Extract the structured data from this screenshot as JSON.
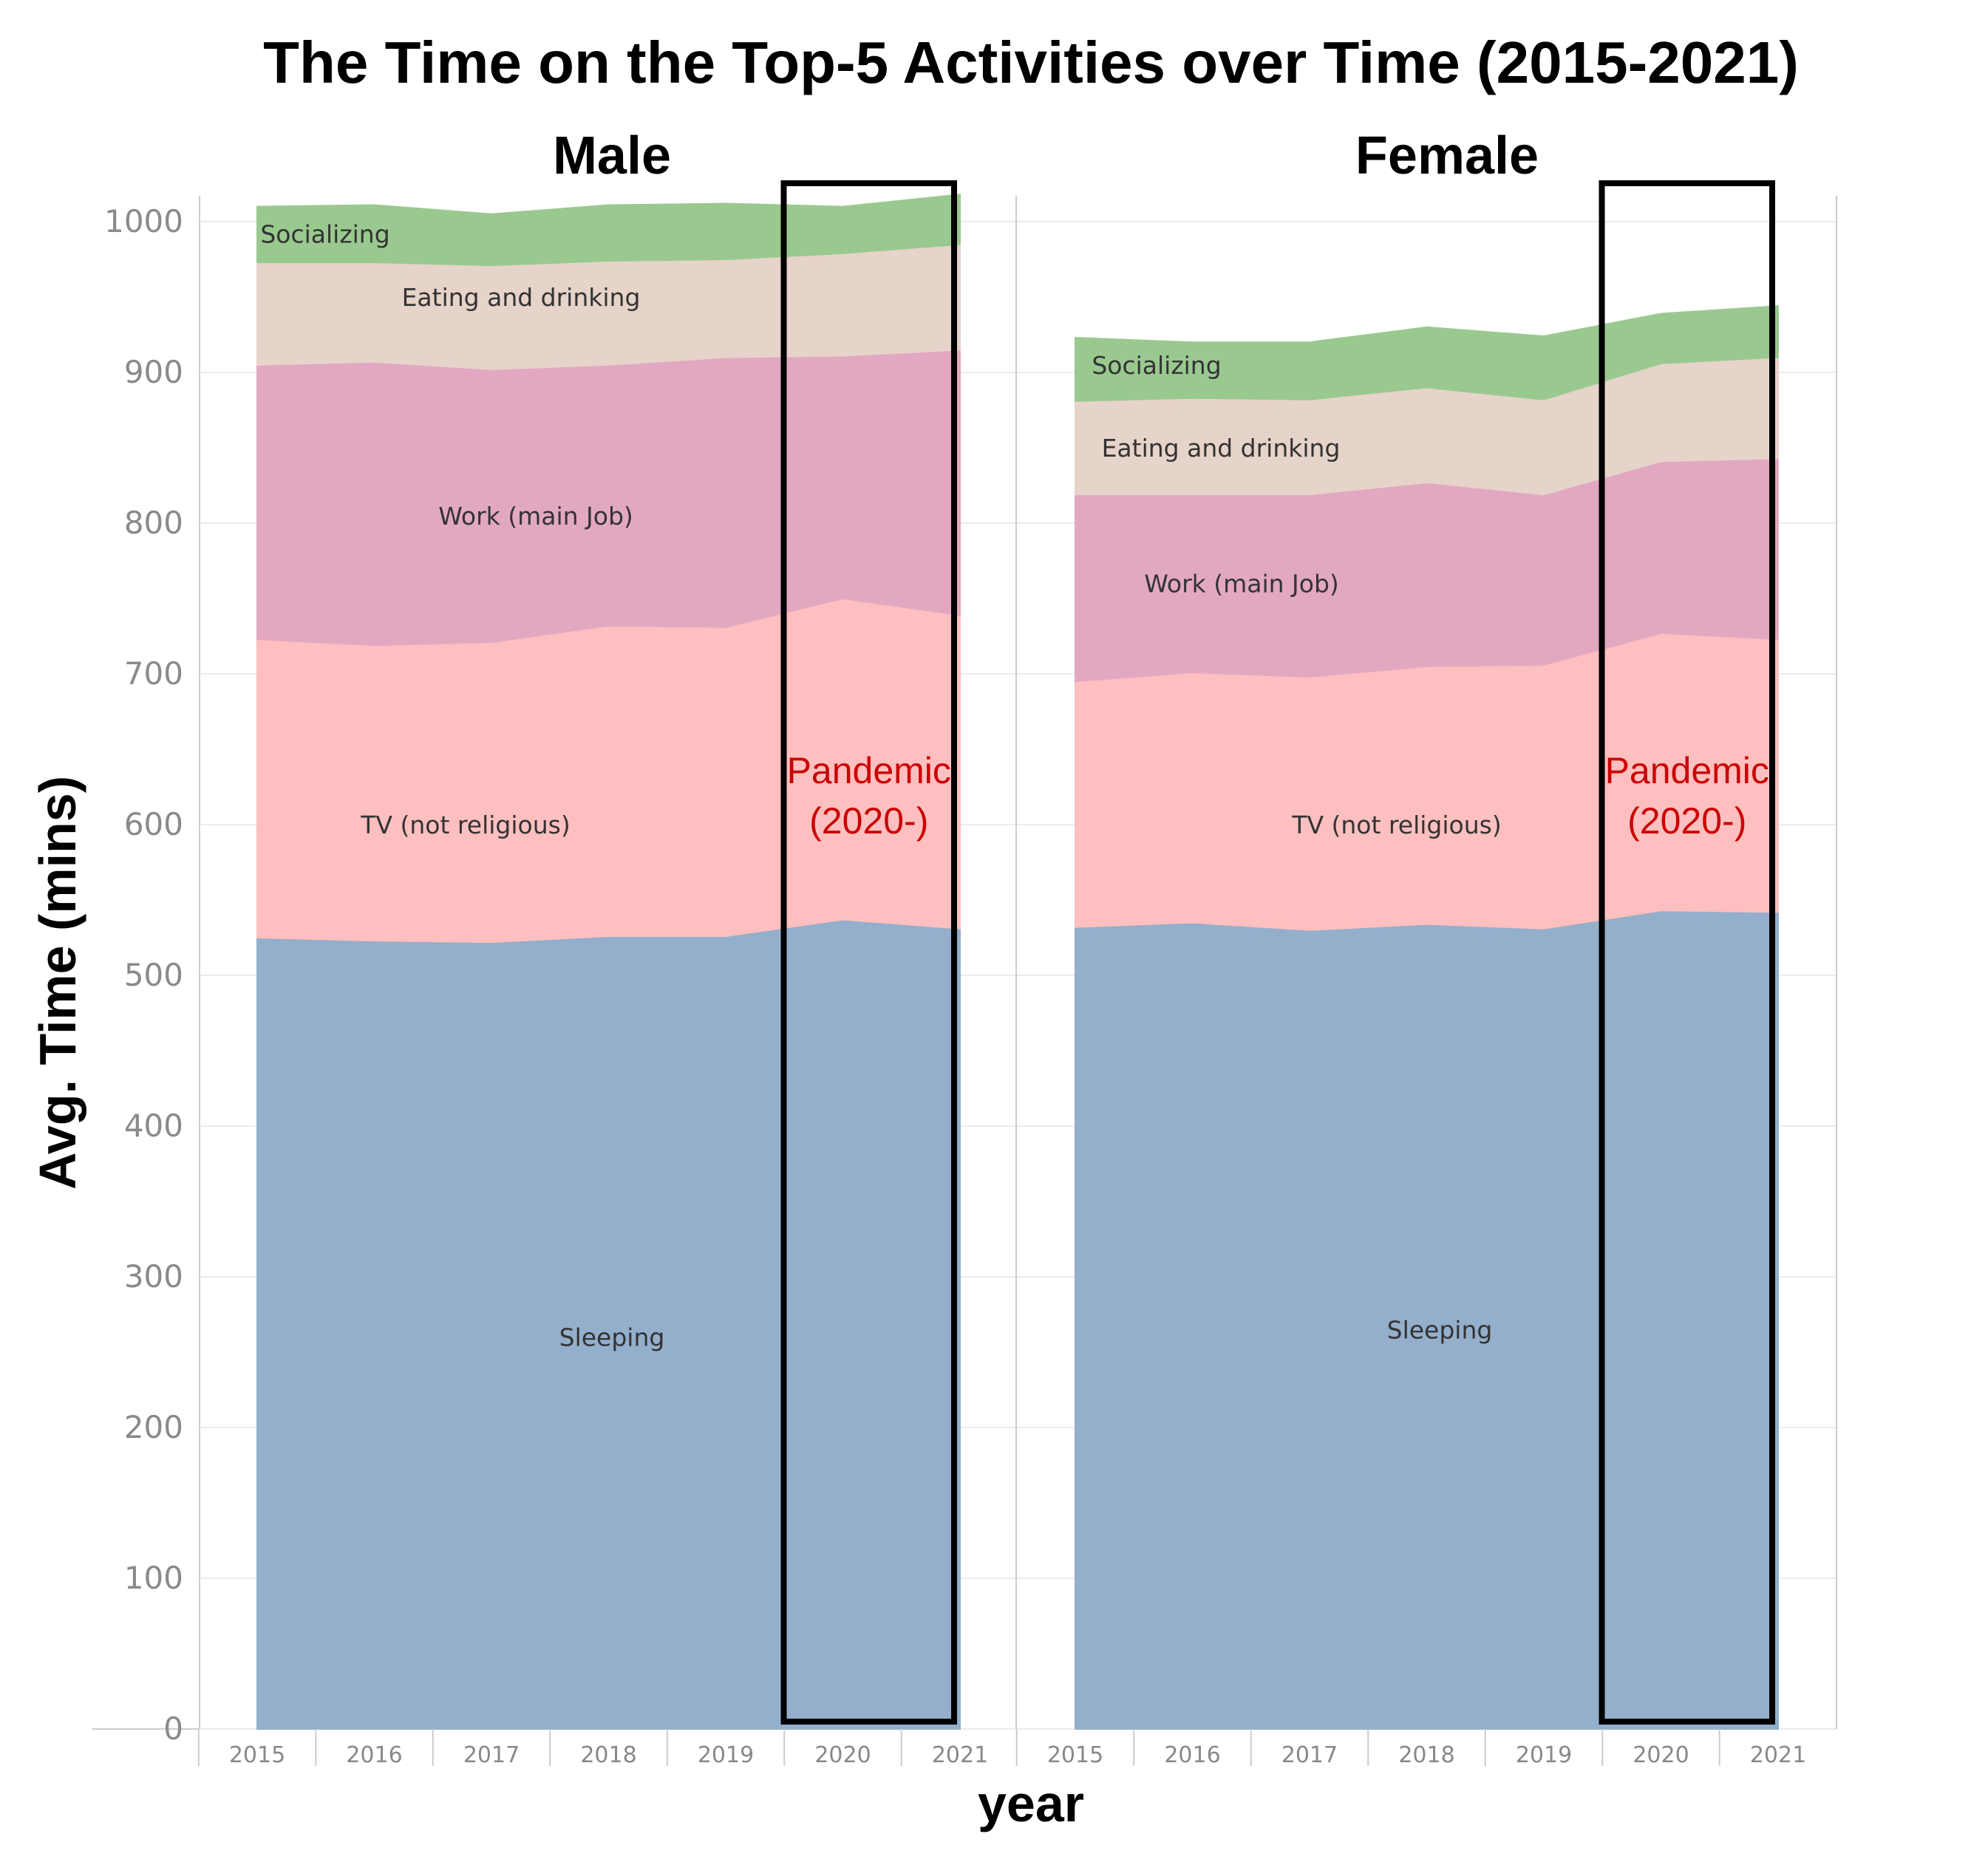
{
  "chart_data": {
    "type": "area",
    "title": "The Time on the Top-5 Activities over Time (2015-2021)",
    "xlabel": "year",
    "ylabel": "Avg.  Time (mins)",
    "ylim": [
      0,
      1000
    ],
    "y_ticks": [
      0,
      100,
      200,
      300,
      400,
      500,
      600,
      700,
      800,
      900,
      1000
    ],
    "x": [
      "2015",
      "2016",
      "2017",
      "2018",
      "2019",
      "2020",
      "2021"
    ],
    "stacked": true,
    "grid": true,
    "panels": [
      {
        "name": "Male",
        "series": [
          {
            "name": "Sleeping",
            "values": [
              525,
              523,
              522,
              526,
              526,
              537,
              531
            ]
          },
          {
            "name": "TV (not religious)",
            "values": [
              198,
              196,
              199,
              206,
              205,
              213,
              208
            ]
          },
          {
            "name": "Work (main Job)",
            "values": [
              182,
              188,
              181,
              173,
              179,
              161,
              176
            ]
          },
          {
            "name": "Eating and drinking",
            "values": [
              68,
              66,
              69,
              69,
              65,
              68,
              70
            ]
          },
          {
            "name": "Socializing",
            "values": [
              37,
              38,
              34,
              37,
              37,
              31,
              33
            ]
          }
        ],
        "annotation": {
          "text_line1": "Pandemic",
          "text_line2": "(2020-)",
          "x_range": [
            "2020",
            "2021"
          ]
        }
      },
      {
        "name": "Female",
        "series": [
          {
            "name": "Sleeping",
            "values": [
              532,
              535,
              530,
              534,
              531,
              543,
              542
            ]
          },
          {
            "name": "TV (not religious)",
            "values": [
              163,
              166,
              168,
              171,
              175,
              184,
              181
            ]
          },
          {
            "name": "Work (main Job)",
            "values": [
              124,
              118,
              121,
              122,
              113,
              114,
              120
            ]
          },
          {
            "name": "Eating and drinking",
            "values": [
              62,
              64,
              63,
              63,
              63,
              65,
              67
            ]
          },
          {
            "name": "Socializing",
            "values": [
              42,
              37,
              38,
              40,
              42,
              33,
              34
            ]
          }
        ],
        "annotation": {
          "text_line1": "Pandemic",
          "text_line2": "(2020-)",
          "x_range": [
            "2020",
            "2021"
          ]
        }
      }
    ],
    "colors": {
      "Sleeping": "#93afcc",
      "TV (not religious)": "#fdbfbf",
      "Work (main Job)": "#e3a8c1",
      "Eating and drinking": "#e6d3c9",
      "Socializing": "#9ac98f",
      "annotation_text": "#cc0000",
      "annotation_box": "#000000",
      "grid": "#ececec",
      "axis": "#cccccc"
    }
  }
}
